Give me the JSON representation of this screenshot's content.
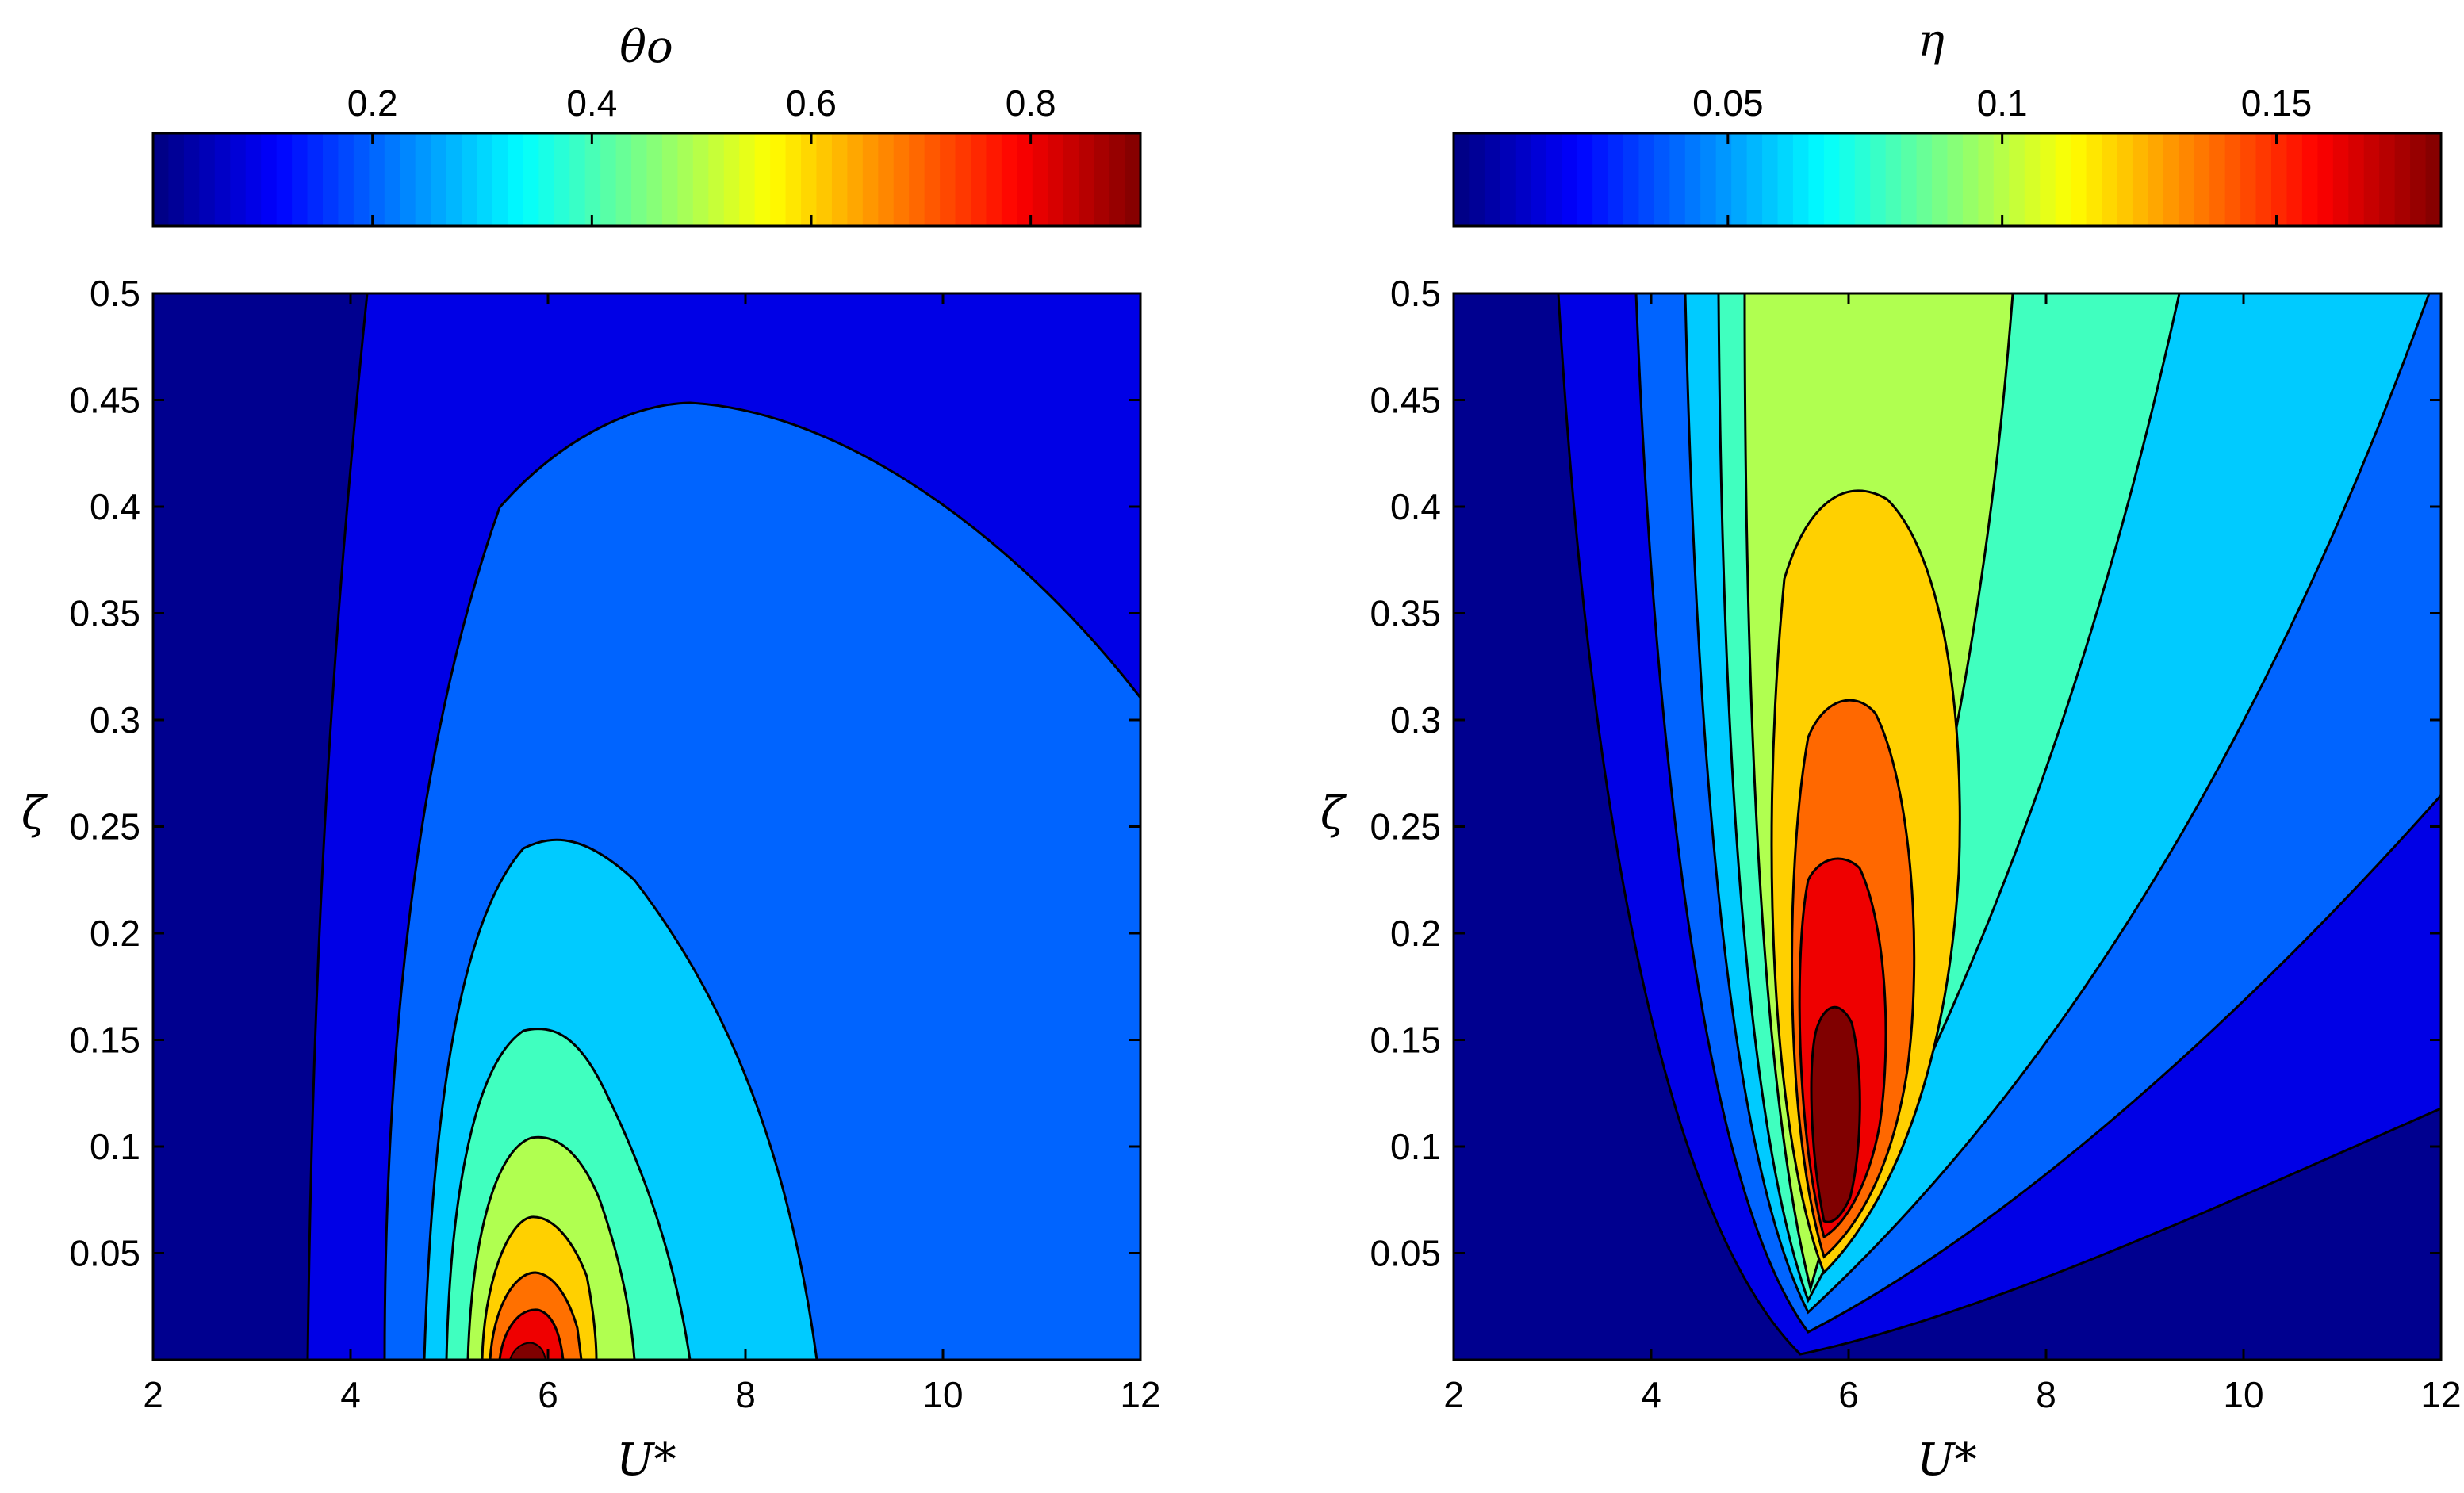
{
  "chart_data": [
    {
      "type": "heatmap",
      "subtype": "filled-contour",
      "xlabel": "U*",
      "ylabel": "ζ",
      "xlim": [
        2,
        12
      ],
      "ylim": [
        0,
        0.5
      ],
      "xticks": [
        2,
        4,
        6,
        8,
        10,
        12
      ],
      "yticks": [
        0.05,
        0.1,
        0.15,
        0.2,
        0.25,
        0.3,
        0.35,
        0.4,
        0.45,
        0.5
      ],
      "colorbar": {
        "label": "θo",
        "position": "top",
        "range": [
          0.0,
          0.9
        ],
        "ticks": [
          0.2,
          0.4,
          0.6,
          0.8
        ]
      },
      "contour_levels": [
        0.1,
        0.2,
        0.3,
        0.4,
        0.5,
        0.6,
        0.7,
        0.8
      ],
      "peak": {
        "x": 5.7,
        "y": 0.0,
        "value": 0.88
      },
      "colormap": "jet",
      "grid": false
    },
    {
      "type": "heatmap",
      "subtype": "filled-contour",
      "xlabel": "U*",
      "ylabel": "ζ",
      "xlim": [
        2,
        12
      ],
      "ylim": [
        0,
        0.5
      ],
      "xticks": [
        2,
        4,
        6,
        8,
        10,
        12
      ],
      "yticks": [
        0.05,
        0.1,
        0.15,
        0.2,
        0.25,
        0.3,
        0.35,
        0.4,
        0.45,
        0.5
      ],
      "colorbar": {
        "label": "η",
        "position": "top",
        "range": [
          0.0,
          0.18
        ],
        "ticks": [
          0.05,
          0.1,
          0.15
        ]
      },
      "contour_levels": [
        0.02,
        0.04,
        0.06,
        0.08,
        0.1,
        0.12,
        0.14,
        0.16
      ],
      "peak": {
        "x": 5.8,
        "y": 0.12,
        "value": 0.175
      },
      "colormap": "jet",
      "grid": false
    }
  ]
}
